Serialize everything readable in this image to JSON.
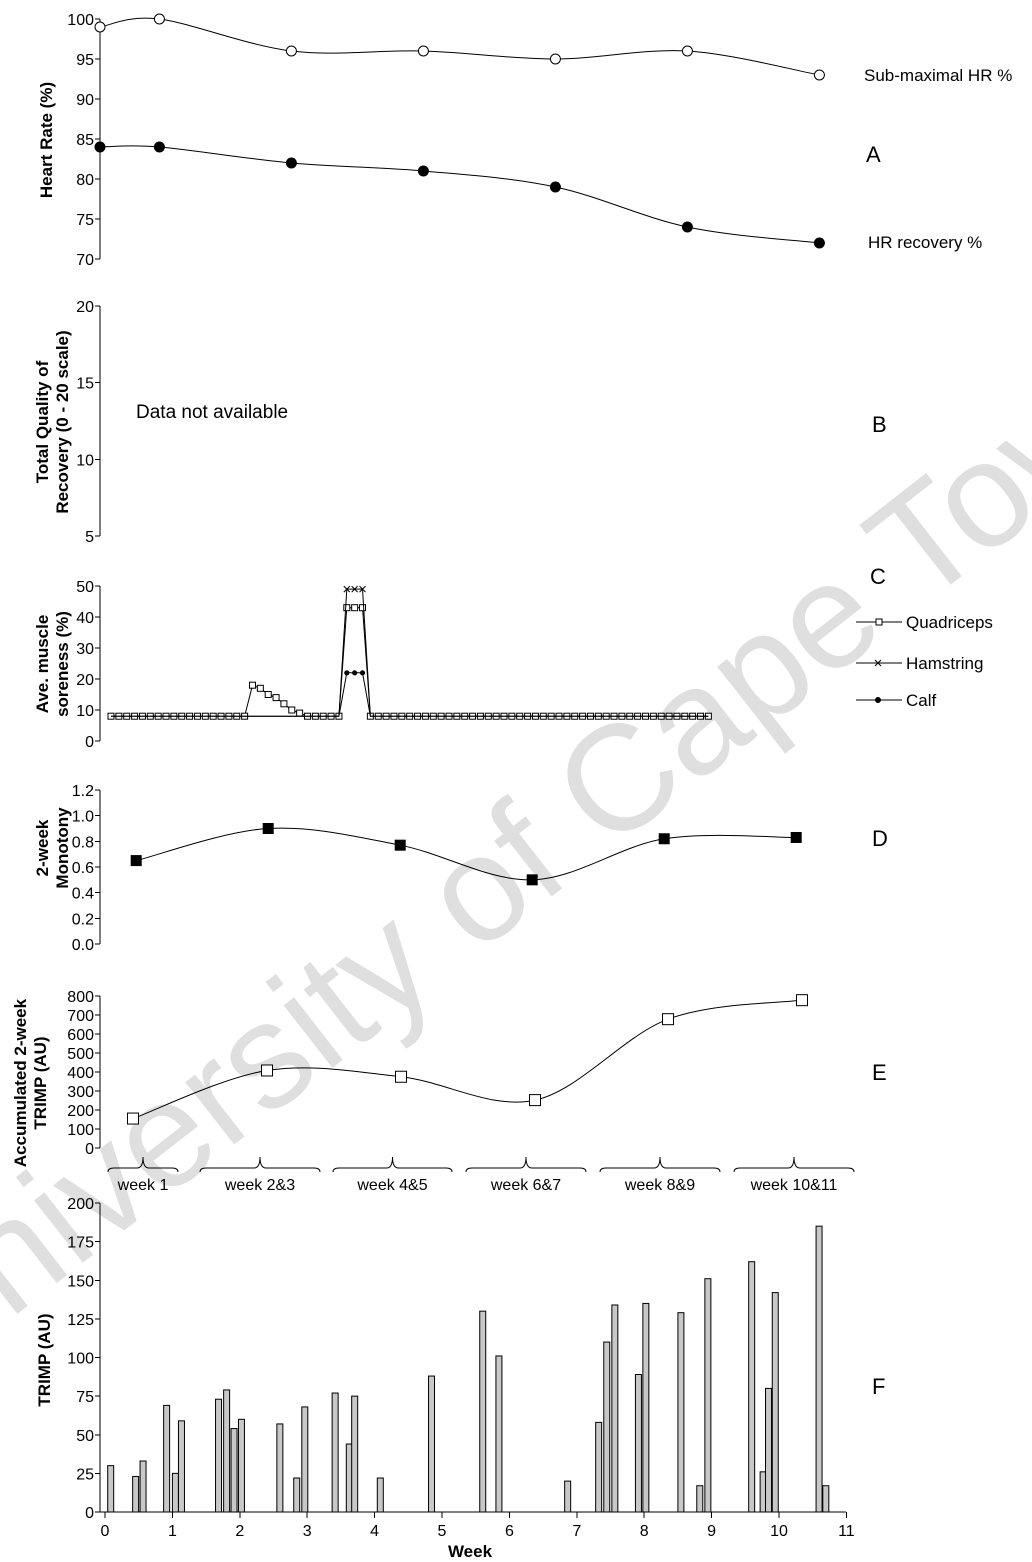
{
  "watermark": "University of Cape Town",
  "chart_data": [
    {
      "panel": "A",
      "type": "line",
      "ylabel": "Heart Rate (%)",
      "ylim": [
        70,
        100
      ],
      "yticks": [
        70,
        75,
        80,
        85,
        90,
        95,
        100
      ],
      "x": [
        0,
        0.45,
        1.45,
        2.45,
        3.45,
        4.45,
        5.45
      ],
      "series": [
        {
          "name": "Sub-maximal HR %",
          "marker": "open-circle",
          "values": [
            99,
            100,
            96,
            96,
            95,
            96,
            93
          ]
        },
        {
          "name": "HR recovery %",
          "marker": "filled-circle",
          "values": [
            84,
            84,
            82,
            81,
            79,
            74,
            72
          ]
        }
      ]
    },
    {
      "panel": "B",
      "type": "line",
      "ylabel": "Total Quality of Recovery (0 - 20 scale)",
      "ylim": [
        5,
        20
      ],
      "yticks": [
        5,
        10,
        15,
        20
      ],
      "annotation": "Data not available",
      "series": []
    },
    {
      "panel": "C",
      "type": "line",
      "ylabel": "Ave. muscle soreness (%)",
      "ylim": [
        0,
        50
      ],
      "yticks": [
        0,
        10,
        20,
        30,
        40,
        50
      ],
      "x_days": 77,
      "series": [
        {
          "name": "Quadriceps",
          "marker": "open-square",
          "values": [
            8,
            8,
            8,
            8,
            8,
            8,
            8,
            8,
            8,
            8,
            8,
            8,
            8,
            8,
            8,
            8,
            8,
            8,
            18,
            17,
            15,
            14,
            12,
            10,
            9,
            8,
            8,
            8,
            8,
            8,
            43,
            43,
            43,
            8,
            8,
            8,
            8,
            8,
            8,
            8,
            8,
            8,
            8,
            8,
            8,
            8,
            8,
            8,
            8,
            8,
            8,
            8,
            8,
            8,
            8,
            8,
            8,
            8,
            8,
            8,
            8,
            8,
            8,
            8,
            8,
            8,
            8,
            8,
            8,
            8,
            8,
            8,
            8,
            8,
            8,
            8,
            8
          ]
        },
        {
          "name": "Hamstring",
          "marker": "x",
          "values": [
            8,
            8,
            8,
            8,
            8,
            8,
            8,
            8,
            8,
            8,
            8,
            8,
            8,
            8,
            8,
            8,
            8,
            8,
            8,
            8,
            8,
            8,
            8,
            8,
            8,
            8,
            8,
            8,
            8,
            8,
            49,
            49,
            49,
            8,
            8,
            8,
            8,
            8,
            8,
            8,
            8,
            8,
            8,
            8,
            8,
            8,
            8,
            8,
            8,
            8,
            8,
            8,
            8,
            8,
            8,
            8,
            8,
            8,
            8,
            8,
            8,
            8,
            8,
            8,
            8,
            8,
            8,
            8,
            8,
            8,
            8,
            8,
            8,
            8,
            8,
            8,
            8
          ]
        },
        {
          "name": "Calf",
          "marker": "filled-circle",
          "values": [
            8,
            8,
            8,
            8,
            8,
            8,
            8,
            8,
            8,
            8,
            8,
            8,
            8,
            8,
            8,
            8,
            8,
            8,
            8,
            8,
            8,
            8,
            8,
            8,
            8,
            8,
            8,
            8,
            8,
            8,
            22,
            22,
            22,
            8,
            8,
            8,
            8,
            8,
            8,
            8,
            8,
            8,
            8,
            8,
            8,
            8,
            8,
            8,
            8,
            8,
            8,
            8,
            8,
            8,
            8,
            8,
            8,
            8,
            8,
            8,
            8,
            8,
            8,
            8,
            8,
            8,
            8,
            8,
            8,
            8,
            8,
            8,
            8,
            8,
            8,
            8,
            8
          ]
        }
      ]
    },
    {
      "panel": "D",
      "type": "line",
      "ylabel": "2-week Monotony",
      "ylim": [
        0,
        1.2
      ],
      "yticks": [
        "0.0",
        "0.2",
        "0.4",
        "0.6",
        "0.8",
        "1.0",
        "1.2"
      ],
      "x": [
        0.1,
        1.1,
        2.1,
        3.1,
        4.1,
        5.1
      ],
      "series": [
        {
          "name": "",
          "marker": "filled-square",
          "values": [
            0.65,
            0.9,
            0.77,
            0.5,
            0.82,
            0.83
          ]
        }
      ]
    },
    {
      "panel": "E",
      "type": "line",
      "ylabel": "Accumulated 2-week TRIMP (AU)",
      "ylim": [
        0,
        800
      ],
      "yticks": [
        0,
        100,
        200,
        300,
        400,
        500,
        600,
        700,
        800
      ],
      "categories": [
        "week 1",
        "week 2&3",
        "week 4&5",
        "week 6&7",
        "week 8&9",
        "week 10&11"
      ],
      "series": [
        {
          "name": "",
          "marker": "open-square",
          "values": [
            155,
            408,
            375,
            252,
            678,
            778
          ]
        }
      ]
    },
    {
      "panel": "F",
      "type": "bar",
      "ylabel": "TRIMP (AU)",
      "xlabel": "Week",
      "ylim": [
        0,
        200
      ],
      "yticks": [
        0,
        25,
        50,
        75,
        100,
        125,
        150,
        175,
        200
      ],
      "xlim": [
        0,
        11
      ],
      "xticks": [
        0,
        1,
        2,
        3,
        4,
        5,
        6,
        7,
        8,
        9,
        10,
        11
      ],
      "x": [
        0.04,
        0.41,
        0.52,
        0.87,
        1.0,
        1.09,
        1.64,
        1.76,
        1.87,
        1.98,
        2.55,
        2.8,
        2.92,
        3.37,
        3.58,
        3.66,
        4.04,
        4.8,
        5.56,
        5.8,
        6.82,
        7.28,
        7.4,
        7.52,
        7.87,
        7.98,
        8.5,
        8.78,
        8.9,
        9.55,
        9.72,
        9.8,
        9.9,
        10.55,
        10.65
      ],
      "values": [
        30,
        23,
        33,
        69,
        25,
        59,
        73,
        79,
        54,
        60,
        57,
        22,
        68,
        77,
        44,
        75,
        22,
        88,
        130,
        101,
        20,
        58,
        110,
        134,
        89,
        135,
        129,
        17,
        151,
        162,
        26,
        80,
        142,
        185,
        17
      ]
    }
  ],
  "panel_labels": {
    "a": "A",
    "b": "B",
    "c": "C",
    "d": "D",
    "e": "E",
    "f": "F"
  }
}
